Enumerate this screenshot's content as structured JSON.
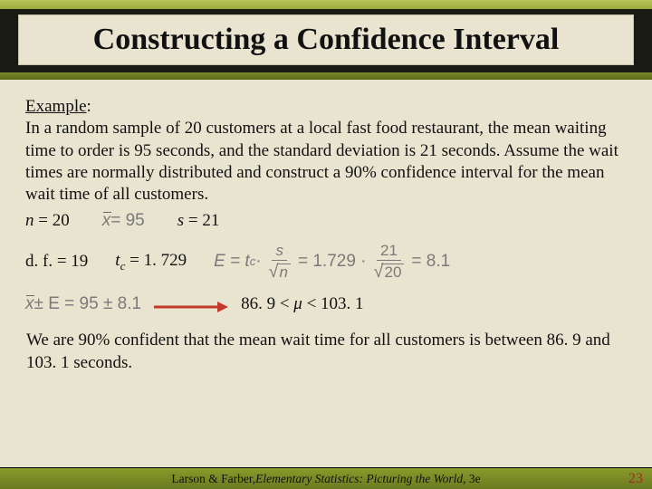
{
  "colors": {
    "page_bg": "#e8e4d0",
    "olive_light": "#b8c858",
    "olive_mid": "#8a9a2a",
    "olive_dark": "#5a6a18",
    "dark_band": "#1a1a14",
    "text": "#111111",
    "gray_eq": "#7a7a7a",
    "arrow": "#c43a2a",
    "page_num": "#a52a2a"
  },
  "typography": {
    "title_fontsize_pt": 26,
    "body_fontsize_pt": 14,
    "footer_fontsize_pt": 10,
    "family": "Times New Roman"
  },
  "slide": {
    "title": "Constructing a Confidence Interval",
    "example_label": "Example",
    "example_colon": ":",
    "problem_text": "In a random sample of 20 customers at a local fast food restaurant, the mean waiting time to order is 95 seconds, and the standard deviation is 21 seconds.  Assume the wait times are normally distributed and construct a 90% confidence interval for the mean wait time of all customers.",
    "given": {
      "n_label": "n",
      "n_eq": " = ",
      "n_value": "20",
      "xbar_eq_left": "x",
      "xbar_eq_val": " = 95",
      "s_label": "s",
      "s_eq": "  = ",
      "s_value": "21"
    },
    "row2": {
      "df_label": "d. f. = ",
      "df_value": "19",
      "tc_var": "t",
      "tc_sub": "c",
      "tc_eq": " = ",
      "tc_value": "1. 729",
      "E_expr_prefix": "E = t",
      "E_expr_sub": "c",
      "E_expr_mid1": " · ",
      "frac_num": "s",
      "frac_den_sqrt_arg": "n",
      "E_expr_mid2": " = 1.729 · ",
      "frac2_num": "21",
      "frac2_den_sqrt_arg": "20",
      "E_expr_result": " = 8.1"
    },
    "arrow_row": {
      "interval_expr_left_x": "x",
      "interval_expr_left_rest": " ± E = 95 ± 8.1",
      "result": "86. 9 < μ < 103. 1"
    },
    "conclusion": "We are 90% confident that the mean wait time for all customers is between 86. 9 and 103. 1 seconds.",
    "footer": {
      "authors": "Larson & Farber, ",
      "book": "Elementary Statistics: Picturing the World",
      "edition": ", 3e"
    },
    "page_number": "23"
  }
}
